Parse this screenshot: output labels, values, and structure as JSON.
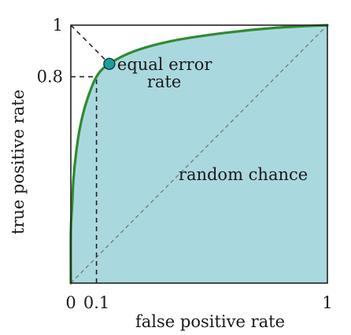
{
  "chart_data": {
    "type": "line",
    "xlabel": "false positive rate",
    "ylabel": "true positive rate",
    "xlim": [
      0,
      1
    ],
    "ylim": [
      0,
      1
    ],
    "x_ticks": [
      {
        "value": 0,
        "label": "0"
      },
      {
        "value": 0.1,
        "label": "0.1"
      },
      {
        "value": 1,
        "label": "1"
      }
    ],
    "y_ticks": [
      {
        "value": 0.8,
        "label": "0.8"
      },
      {
        "value": 1,
        "label": "1"
      }
    ],
    "series": [
      {
        "kind": "roc-curve",
        "color": "#2e8b2e",
        "fill": "#aad8df",
        "points": [
          [
            0,
            0
          ],
          [
            0,
            0.2
          ],
          [
            0.005,
            0.3
          ],
          [
            0.01,
            0.4
          ],
          [
            0.02,
            0.5
          ],
          [
            0.035,
            0.6
          ],
          [
            0.06,
            0.7
          ],
          [
            0.1,
            0.8
          ],
          [
            0.15,
            0.85
          ],
          [
            0.25,
            0.9
          ],
          [
            0.4,
            0.94
          ],
          [
            0.6,
            0.97
          ],
          [
            0.8,
            0.99
          ],
          [
            1,
            1
          ]
        ]
      },
      {
        "kind": "random-chance-diagonal",
        "color": "#777777",
        "points": [
          [
            0,
            0
          ],
          [
            1,
            1
          ]
        ]
      },
      {
        "kind": "eer-diagonal",
        "color": "#222222",
        "points": [
          [
            0,
            1
          ],
          [
            0.15,
            0.85
          ]
        ]
      }
    ],
    "reference_lines": [
      {
        "from": [
          0,
          0.8
        ],
        "to": [
          0.1,
          0.8
        ]
      },
      {
        "from": [
          0.1,
          0
        ],
        "to": [
          0.1,
          0.8
        ]
      }
    ],
    "marker": {
      "x": 0.15,
      "y": 0.85,
      "color": "#1f9e9e"
    },
    "annotations": {
      "equal_error_line1": "equal error",
      "equal_error_line2": "rate",
      "random_chance": "random chance"
    },
    "grid": false
  }
}
